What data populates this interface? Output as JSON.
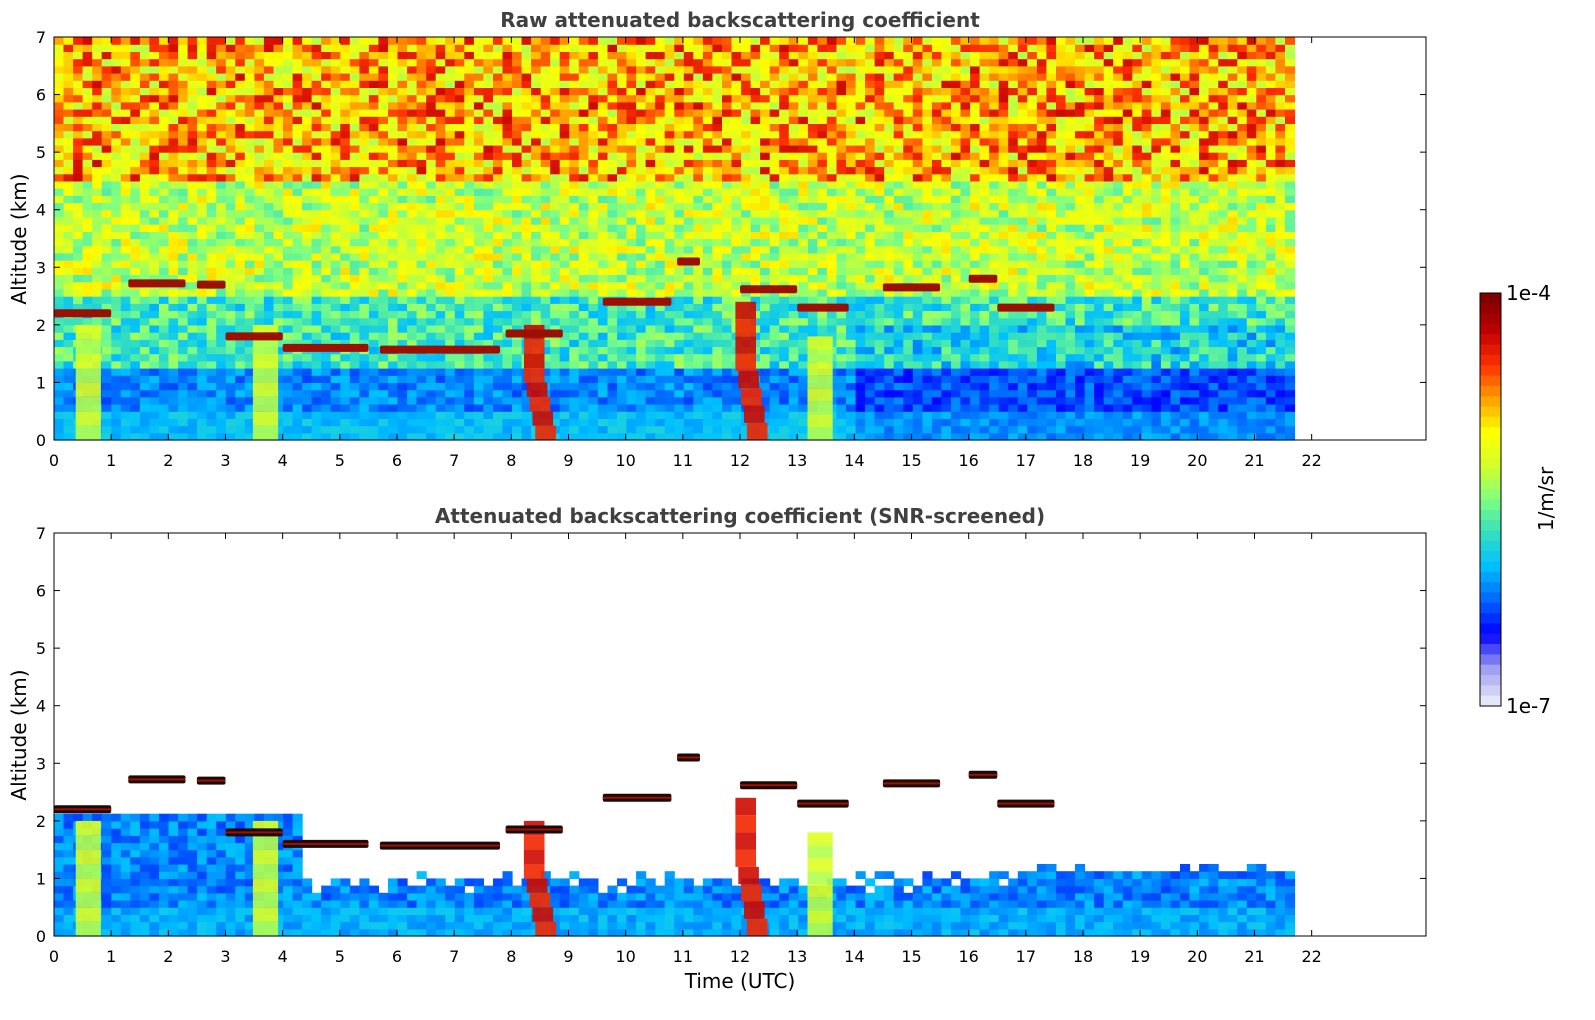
{
  "chart_data": [
    {
      "type": "heatmap",
      "title": "Raw attenuated backscattering coefficient",
      "xlabel": "",
      "ylabel": "Altitude (km)",
      "xlim": [
        0,
        24
      ],
      "ylim": [
        0,
        7
      ],
      "xticks": [
        "0",
        "1",
        "2",
        "3",
        "4",
        "5",
        "6",
        "7",
        "8",
        "9",
        "10",
        "11",
        "12",
        "13",
        "14",
        "15",
        "16",
        "17",
        "18",
        "19",
        "20",
        "21",
        "22"
      ],
      "yticks": [
        "0",
        "1",
        "2",
        "3",
        "4",
        "5",
        "6",
        "7"
      ],
      "data_extent_x": [
        0,
        21.7
      ],
      "screened": false,
      "cloud_layers": [
        {
          "x": [
            0.0,
            1.0
          ],
          "alt": 2.2
        },
        {
          "x": [
            1.3,
            2.3
          ],
          "alt": 2.72
        },
        {
          "x": [
            2.5,
            3.0
          ],
          "alt": 2.7
        },
        {
          "x": [
            3.0,
            4.0
          ],
          "alt": 1.8
        },
        {
          "x": [
            4.0,
            5.5
          ],
          "alt": 1.6
        },
        {
          "x": [
            5.7,
            7.8
          ],
          "alt": 1.57
        },
        {
          "x": [
            7.9,
            8.9
          ],
          "alt": 1.85
        },
        {
          "x": [
            9.6,
            10.8
          ],
          "alt": 2.4
        },
        {
          "x": [
            10.9,
            11.3
          ],
          "alt": 3.1
        },
        {
          "x": [
            12.0,
            13.0
          ],
          "alt": 2.62
        },
        {
          "x": [
            13.0,
            13.9
          ],
          "alt": 2.3
        },
        {
          "x": [
            14.5,
            15.5
          ],
          "alt": 2.65
        },
        {
          "x": [
            16.0,
            16.5
          ],
          "alt": 2.8
        },
        {
          "x": [
            16.5,
            17.5
          ],
          "alt": 2.3
        }
      ],
      "plumes": [
        {
          "x": 8.4,
          "top": 2.0,
          "intensity": "high"
        },
        {
          "x": 12.1,
          "top": 2.4,
          "intensity": "high"
        },
        {
          "x": 3.7,
          "top": 2.0,
          "intensity": "medium"
        },
        {
          "x": 13.4,
          "top": 1.8,
          "intensity": "medium"
        },
        {
          "x": 0.6,
          "top": 2.0,
          "intensity": "medium"
        }
      ]
    },
    {
      "type": "heatmap",
      "title": "Attenuated backscattering coefficient (SNR-screened)",
      "xlabel": "Time (UTC)",
      "ylabel": "Altitude (km)",
      "xlim": [
        0,
        24
      ],
      "ylim": [
        0,
        7
      ],
      "xticks": [
        "0",
        "1",
        "2",
        "3",
        "4",
        "5",
        "6",
        "7",
        "8",
        "9",
        "10",
        "11",
        "12",
        "13",
        "14",
        "15",
        "16",
        "17",
        "18",
        "19",
        "20",
        "21",
        "22"
      ],
      "yticks": [
        "0",
        "1",
        "2",
        "3",
        "4",
        "5",
        "6",
        "7"
      ],
      "data_extent_x": [
        0,
        21.7
      ],
      "screened": true,
      "cloud_layers": [
        {
          "x": [
            0.0,
            1.0
          ],
          "alt": 2.2
        },
        {
          "x": [
            1.3,
            2.3
          ],
          "alt": 2.72
        },
        {
          "x": [
            2.5,
            3.0
          ],
          "alt": 2.7
        },
        {
          "x": [
            3.0,
            4.0
          ],
          "alt": 1.8
        },
        {
          "x": [
            4.0,
            5.5
          ],
          "alt": 1.6
        },
        {
          "x": [
            5.7,
            7.8
          ],
          "alt": 1.57
        },
        {
          "x": [
            7.9,
            8.9
          ],
          "alt": 1.85
        },
        {
          "x": [
            9.6,
            10.8
          ],
          "alt": 2.4
        },
        {
          "x": [
            10.9,
            11.3
          ],
          "alt": 3.1
        },
        {
          "x": [
            12.0,
            13.0
          ],
          "alt": 2.62
        },
        {
          "x": [
            13.0,
            13.9
          ],
          "alt": 2.3
        },
        {
          "x": [
            14.5,
            15.5
          ],
          "alt": 2.65
        },
        {
          "x": [
            16.0,
            16.5
          ],
          "alt": 2.8
        },
        {
          "x": [
            16.5,
            17.5
          ],
          "alt": 2.3
        }
      ],
      "plumes": [
        {
          "x": 8.4,
          "top": 2.0,
          "intensity": "high"
        },
        {
          "x": 12.1,
          "top": 2.4,
          "intensity": "high"
        },
        {
          "x": 3.7,
          "top": 2.0,
          "intensity": "medium"
        },
        {
          "x": 13.4,
          "top": 1.8,
          "intensity": "medium"
        },
        {
          "x": 0.6,
          "top": 2.0,
          "intensity": "medium"
        }
      ]
    }
  ],
  "colorbar": {
    "max_label": "1e-4",
    "min_label": "1e-7",
    "unit_label": "1/m/sr",
    "scale": "log",
    "colormap": [
      "#e6e6fa",
      "#9b9bf0",
      "#0000ff",
      "#0066ff",
      "#00bfff",
      "#33dfc0",
      "#80ff80",
      "#d4ff2a",
      "#ffff00",
      "#ffa000",
      "#ff3000",
      "#c00000",
      "#800000"
    ]
  }
}
